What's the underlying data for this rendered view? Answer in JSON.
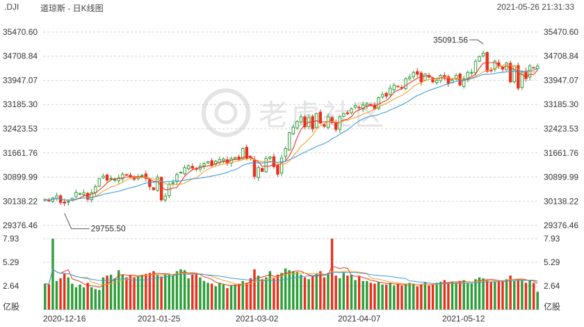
{
  "header": {
    "symbol": ".DJI",
    "title": "道琼斯 - 日K线图",
    "datetime": "2021-05-26 21:31:33"
  },
  "watermark": "老虎社区",
  "colors": {
    "up": "#2e9e3a",
    "down": "#e8321e",
    "ma5": "#e8321e",
    "ma10": "#f0a030",
    "ma20": "#3c9ad8",
    "grid": "#cfcfcf",
    "text": "#333333"
  },
  "chart_data": {
    "type": "candlestick",
    "price_ylim": [
      29376.46,
      35470.6
    ],
    "price_ticks": [
      "35470.60",
      "34708.84",
      "33947.07",
      "33185.30",
      "32423.53",
      "31661.76",
      "30899.99",
      "30138.22",
      "29376.46"
    ],
    "volume_unit": "亿股",
    "volume_ylim": [
      0,
      7.93
    ],
    "volume_ticks": [
      "7.93",
      "5.29",
      "2.64"
    ],
    "x_labels": [
      "2020-12-16",
      "2021-01-25",
      "2021-03-02",
      "2021-04-07",
      "2021-05-12"
    ],
    "annotations": [
      {
        "label": "35091.56",
        "type": "high"
      },
      {
        "label": "29755.50",
        "type": "low"
      }
    ],
    "closes": [
      30200,
      30160,
      30240,
      30310,
      30100,
      30080,
      30130,
      30230,
      30420,
      30380,
      30410,
      30200,
      30410,
      30600,
      30850,
      30930,
      30800,
      30860,
      30820,
      30870,
      30990,
      30960,
      30900,
      30830,
      30900,
      30950,
      30860,
      30600,
      30500,
      30900,
      30180,
      30300,
      30680,
      30720,
      30980,
      31050,
      31200,
      31260,
      31180,
      31150,
      31240,
      31320,
      31380,
      31260,
      31400,
      31450,
      31470,
      31350,
      31480,
      31520,
      31460,
      31800,
      31490,
      31500,
      30920,
      31200,
      31080,
      31490,
      31530,
      31230,
      30990,
      31500,
      31800,
      32300,
      32470,
      32650,
      32800,
      32480,
      32780,
      32420,
      32900,
      32600,
      32500,
      32800,
      32620,
      32400,
      32800,
      32900,
      32890,
      33050,
      33150,
      33080,
      33170,
      33200,
      33170,
      33050,
      33400,
      33500,
      33450,
      33700,
      33800,
      33750,
      33700,
      34000,
      34050,
      34200,
      34140,
      33900,
      34150,
      34050,
      33900,
      33950,
      34100,
      34050,
      33850,
      33950,
      34100,
      33800,
      34000,
      34200,
      34200,
      34550,
      34700,
      34800,
      34230,
      34250,
      34550,
      34400,
      34300,
      34500,
      33900,
      34400,
      33700,
      34200,
      34000,
      34400,
      34350,
      34400
    ],
    "volumes": [
      2.9,
      2.8,
      7.93,
      3.2,
      3.5,
      4.0,
      3.6,
      2.9,
      2.5,
      2.8,
      2.5,
      3.0,
      2.5,
      2.3,
      2.2,
      3.6,
      3.8,
      3.9,
      3.5,
      4.4,
      3.9,
      3.6,
      3.8,
      3.6,
      3.8,
      3.9,
      4.0,
      4.1,
      4.3,
      3.9,
      3.7,
      4.0,
      4.0,
      3.8,
      4.3,
      4.5,
      4.4,
      3.5,
      3.9,
      4.1,
      3.6,
      3.2,
      3.0,
      2.9,
      2.6,
      3.0,
      2.8,
      2.4,
      2.7,
      2.8,
      2.9,
      3.2,
      3.0,
      3.5,
      4.5,
      3.8,
      3.4,
      3.6,
      4.3,
      3.5,
      3.9,
      4.1,
      4.6,
      4.4,
      4.3,
      4.2,
      3.9,
      3.6,
      3.4,
      3.8,
      4.0,
      4.3,
      3.6,
      4.1,
      7.93,
      3.8,
      3.5,
      4.1,
      3.8,
      3.9,
      3.3,
      3.7,
      3.2,
      3.2,
      3.0,
      2.9,
      3.1,
      2.8,
      2.8,
      3.0,
      2.7,
      2.9,
      2.7,
      2.8,
      3.0,
      2.9,
      2.6,
      2.8,
      3.1,
      2.7,
      2.8,
      3.0,
      3.1,
      3.3,
      3.0,
      3.1,
      3.0,
      3.2,
      3.3,
      3.0,
      2.9,
      3.4,
      3.6,
      3.5,
      3.3,
      3.1,
      3.1,
      3.3,
      3.2,
      3.4,
      3.8,
      3.2,
      3.4,
      3.3,
      3.0,
      3.3,
      3.0,
      2.0
    ],
    "high_index": 113,
    "low_index": 5
  }
}
